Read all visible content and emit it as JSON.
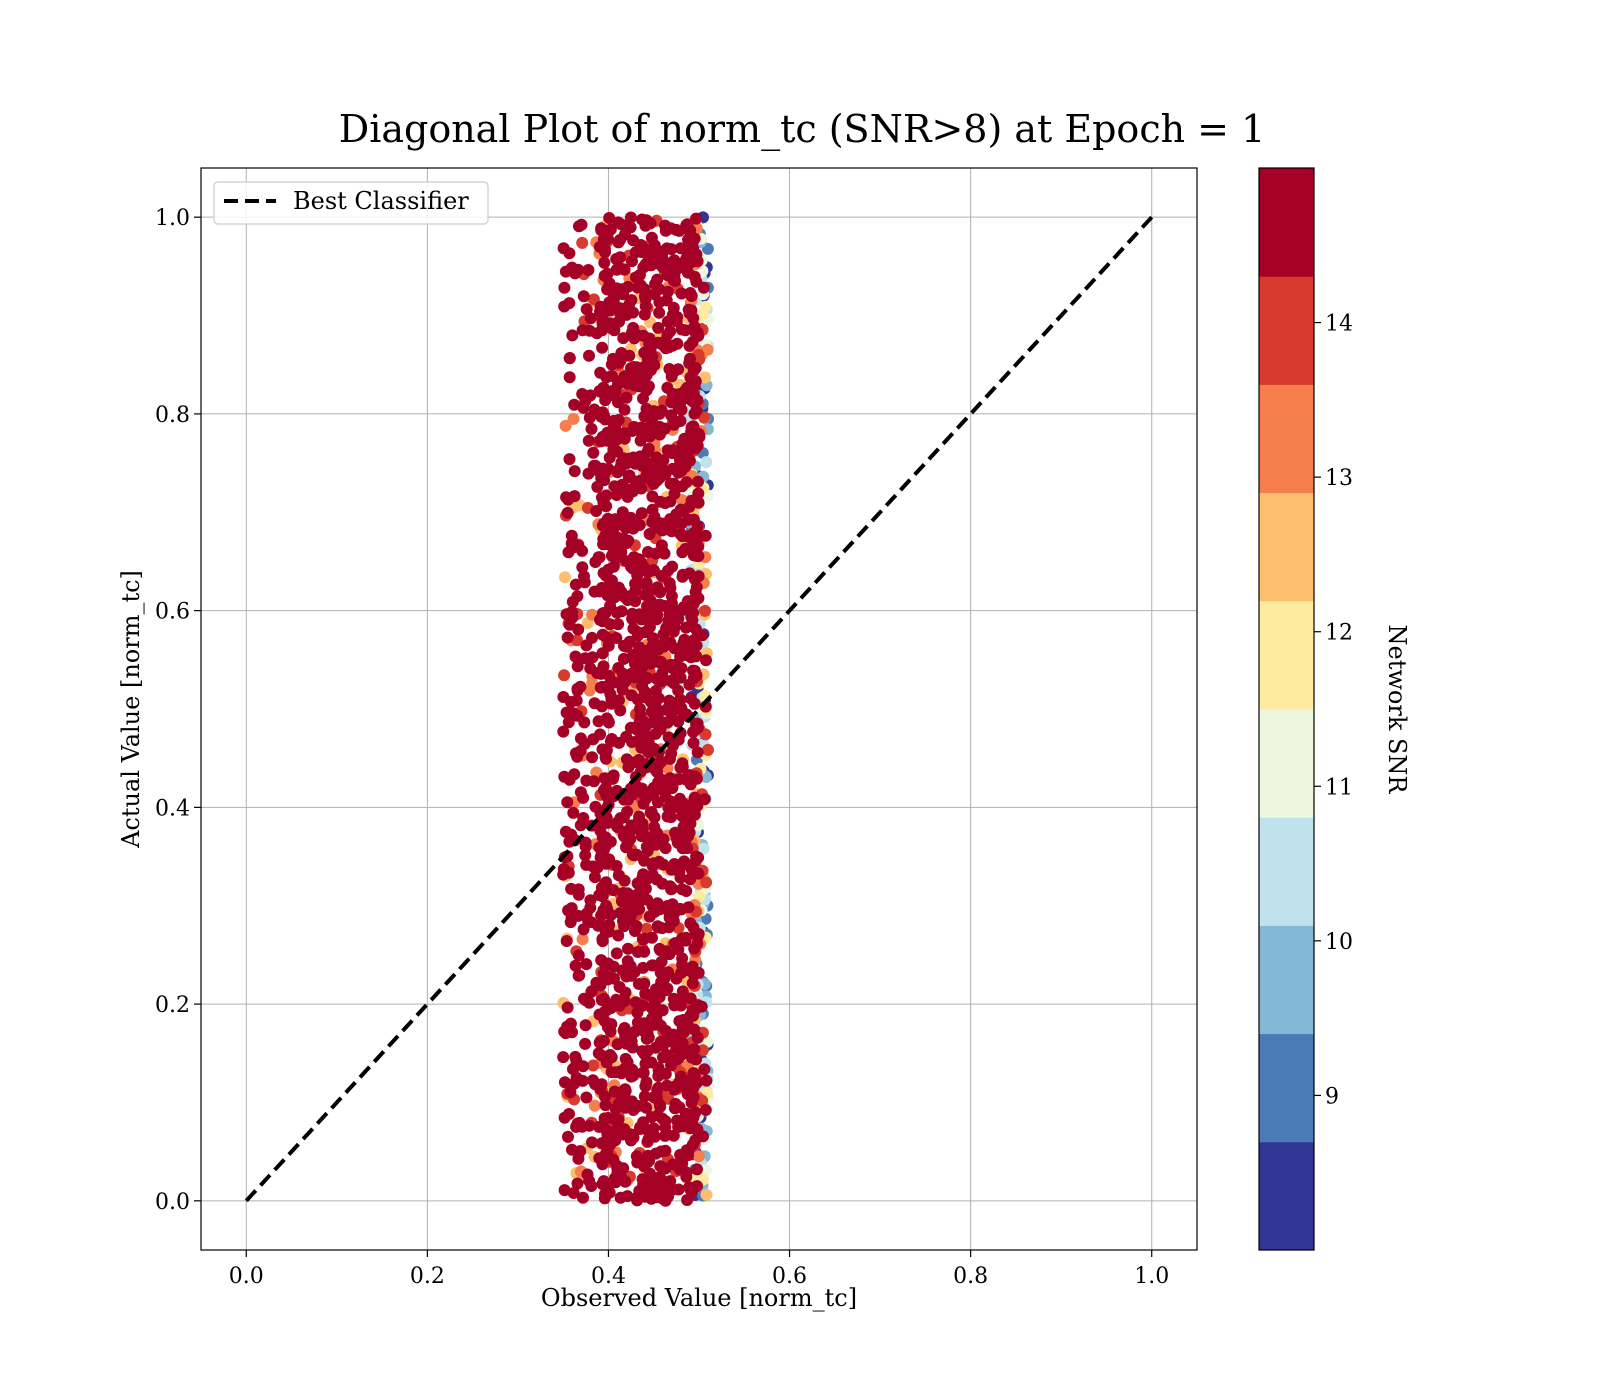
{
  "chart_data": {
    "type": "scatter",
    "title": "Diagonal Plot of norm_tc (SNR>8) at Epoch = 1",
    "xlabel": "Observed Value [norm_tc]",
    "ylabel": "Actual Value [norm_tc]",
    "xlim": [
      -0.05,
      1.05
    ],
    "ylim": [
      -0.05,
      1.05
    ],
    "xticks": [
      0.0,
      0.2,
      0.4,
      0.6,
      0.8,
      1.0
    ],
    "yticks": [
      0.0,
      0.2,
      0.4,
      0.6,
      0.8,
      1.0
    ],
    "xtick_labels": [
      "0.0",
      "0.2",
      "0.4",
      "0.6",
      "0.8",
      "1.0"
    ],
    "ytick_labels": [
      "0.0",
      "0.2",
      "0.4",
      "0.6",
      "0.8",
      "1.0"
    ],
    "grid": true,
    "legend": {
      "position": "top-left",
      "entries": [
        {
          "label": "Best Classifier",
          "style": "dashed",
          "color": "#000000"
        }
      ]
    },
    "reference_line": {
      "name": "Best Classifier",
      "x": [
        0.0,
        1.0
      ],
      "y": [
        0.0,
        1.0
      ]
    },
    "scatter_cloud": {
      "x_range": [
        0.34,
        0.52
      ],
      "x_core": [
        0.39,
        0.5
      ],
      "y_range": [
        0.0,
        1.0
      ],
      "dominant_color": "#a50026"
    },
    "colorbar": {
      "label": "Network SNR",
      "range": [
        8.0,
        15.0
      ],
      "ticks": [
        9,
        10,
        11,
        12,
        13,
        14
      ],
      "tick_labels": [
        "9",
        "10",
        "11",
        "12",
        "13",
        "14"
      ],
      "colors": [
        "#313695",
        "#4575b4",
        "#74add1",
        "#abd9e9",
        "#e0f3f8",
        "#fee090",
        "#fdae61",
        "#f46d43",
        "#d73027",
        "#a50026"
      ],
      "bands": [
        {
          "from": 8.0,
          "to": 8.7,
          "color": "#313695"
        },
        {
          "from": 8.7,
          "to": 9.4,
          "color": "#4a7bb7"
        },
        {
          "from": 9.4,
          "to": 10.1,
          "color": "#83b8d7"
        },
        {
          "from": 10.1,
          "to": 10.8,
          "color": "#c0e2ec"
        },
        {
          "from": 10.8,
          "to": 11.5,
          "color": "#edf6df"
        },
        {
          "from": 11.5,
          "to": 12.2,
          "color": "#feeb9f"
        },
        {
          "from": 12.2,
          "to": 12.9,
          "color": "#fdbe6f"
        },
        {
          "from": 12.9,
          "to": 13.6,
          "color": "#f57e4c"
        },
        {
          "from": 13.6,
          "to": 14.3,
          "color": "#d83a2e"
        },
        {
          "from": 14.3,
          "to": 15.0,
          "color": "#a50026"
        }
      ]
    }
  }
}
